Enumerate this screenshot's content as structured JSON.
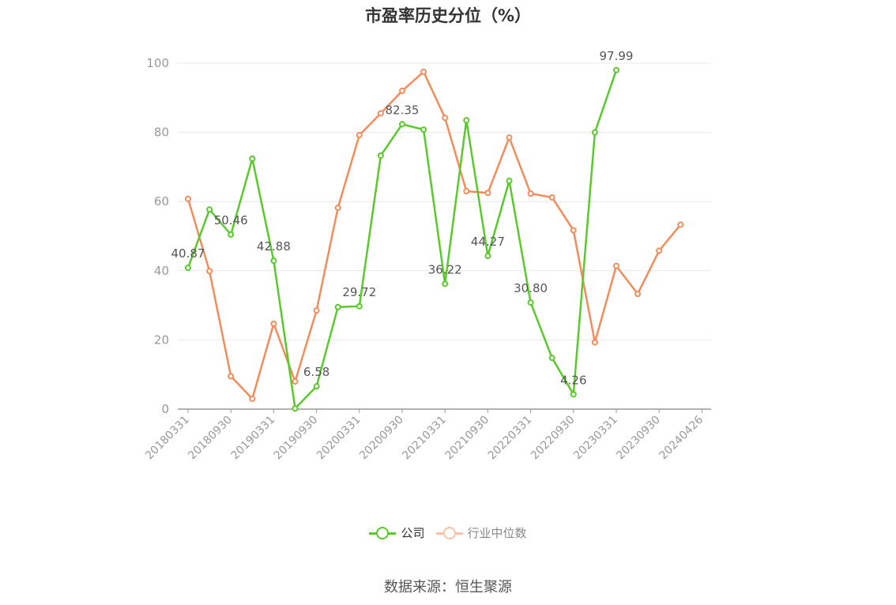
{
  "title": "市盈率历史分位（%）",
  "source": "数据来源：恒生聚源",
  "legend": {
    "company": "公司",
    "industry": "行业中位数"
  },
  "colors": {
    "company": "#5ac92b",
    "industry": "#f28c5a",
    "industry_legend": "#f9c2a8",
    "grid": "#e6e8ee",
    "axis": "#999999",
    "tick_text": "#999999",
    "label_text": "#555555"
  },
  "chart_data": {
    "type": "line",
    "title": "市盈率历史分位（%）",
    "ylim": [
      0,
      100
    ],
    "yticks": [
      0,
      20,
      40,
      60,
      80,
      100
    ],
    "grid": true,
    "legend_position": "bottom",
    "x_tick_labels": [
      "20180331",
      "20180930",
      "20190331",
      "20190930",
      "20200331",
      "20200930",
      "20210331",
      "20210930",
      "20220331",
      "20220930",
      "20230331",
      "20230930",
      "20240426"
    ],
    "x": [
      "20180331",
      "20180630",
      "20180930",
      "20181231",
      "20190331",
      "20190630",
      "20190930",
      "20191231",
      "20200331",
      "20200630",
      "20200930",
      "20201231",
      "20210331",
      "20210630",
      "20210930",
      "20211231",
      "20220331",
      "20220630",
      "20220930",
      "20221231",
      "20230331",
      "20230630",
      "20230930",
      "20231231",
      "20240426"
    ],
    "series": [
      {
        "name": "公司",
        "values": [
          40.87,
          57.7,
          50.46,
          72.4,
          42.88,
          0.2,
          6.58,
          29.5,
          29.72,
          73.3,
          82.35,
          80.8,
          36.22,
          83.5,
          44.27,
          66.0,
          30.8,
          14.8,
          4.26,
          80.0,
          97.99,
          null,
          null,
          null,
          null
        ],
        "labels": {
          "0": "40.87",
          "2": "50.46",
          "4": "42.88",
          "6": "6.58",
          "8": "29.72",
          "10": "82.35",
          "12": "36.22",
          "14": "44.27",
          "16": "30.80",
          "18": "4.26",
          "20": "97.99"
        }
      },
      {
        "name": "行业中位数",
        "values": [
          60.8,
          39.9,
          9.5,
          3.0,
          24.7,
          8.0,
          28.5,
          58.2,
          79.2,
          85.5,
          92.0,
          97.5,
          84.2,
          63.0,
          62.5,
          78.5,
          62.3,
          61.2,
          51.7,
          19.3,
          41.4,
          33.3,
          45.8,
          53.3,
          null
        ]
      }
    ]
  }
}
